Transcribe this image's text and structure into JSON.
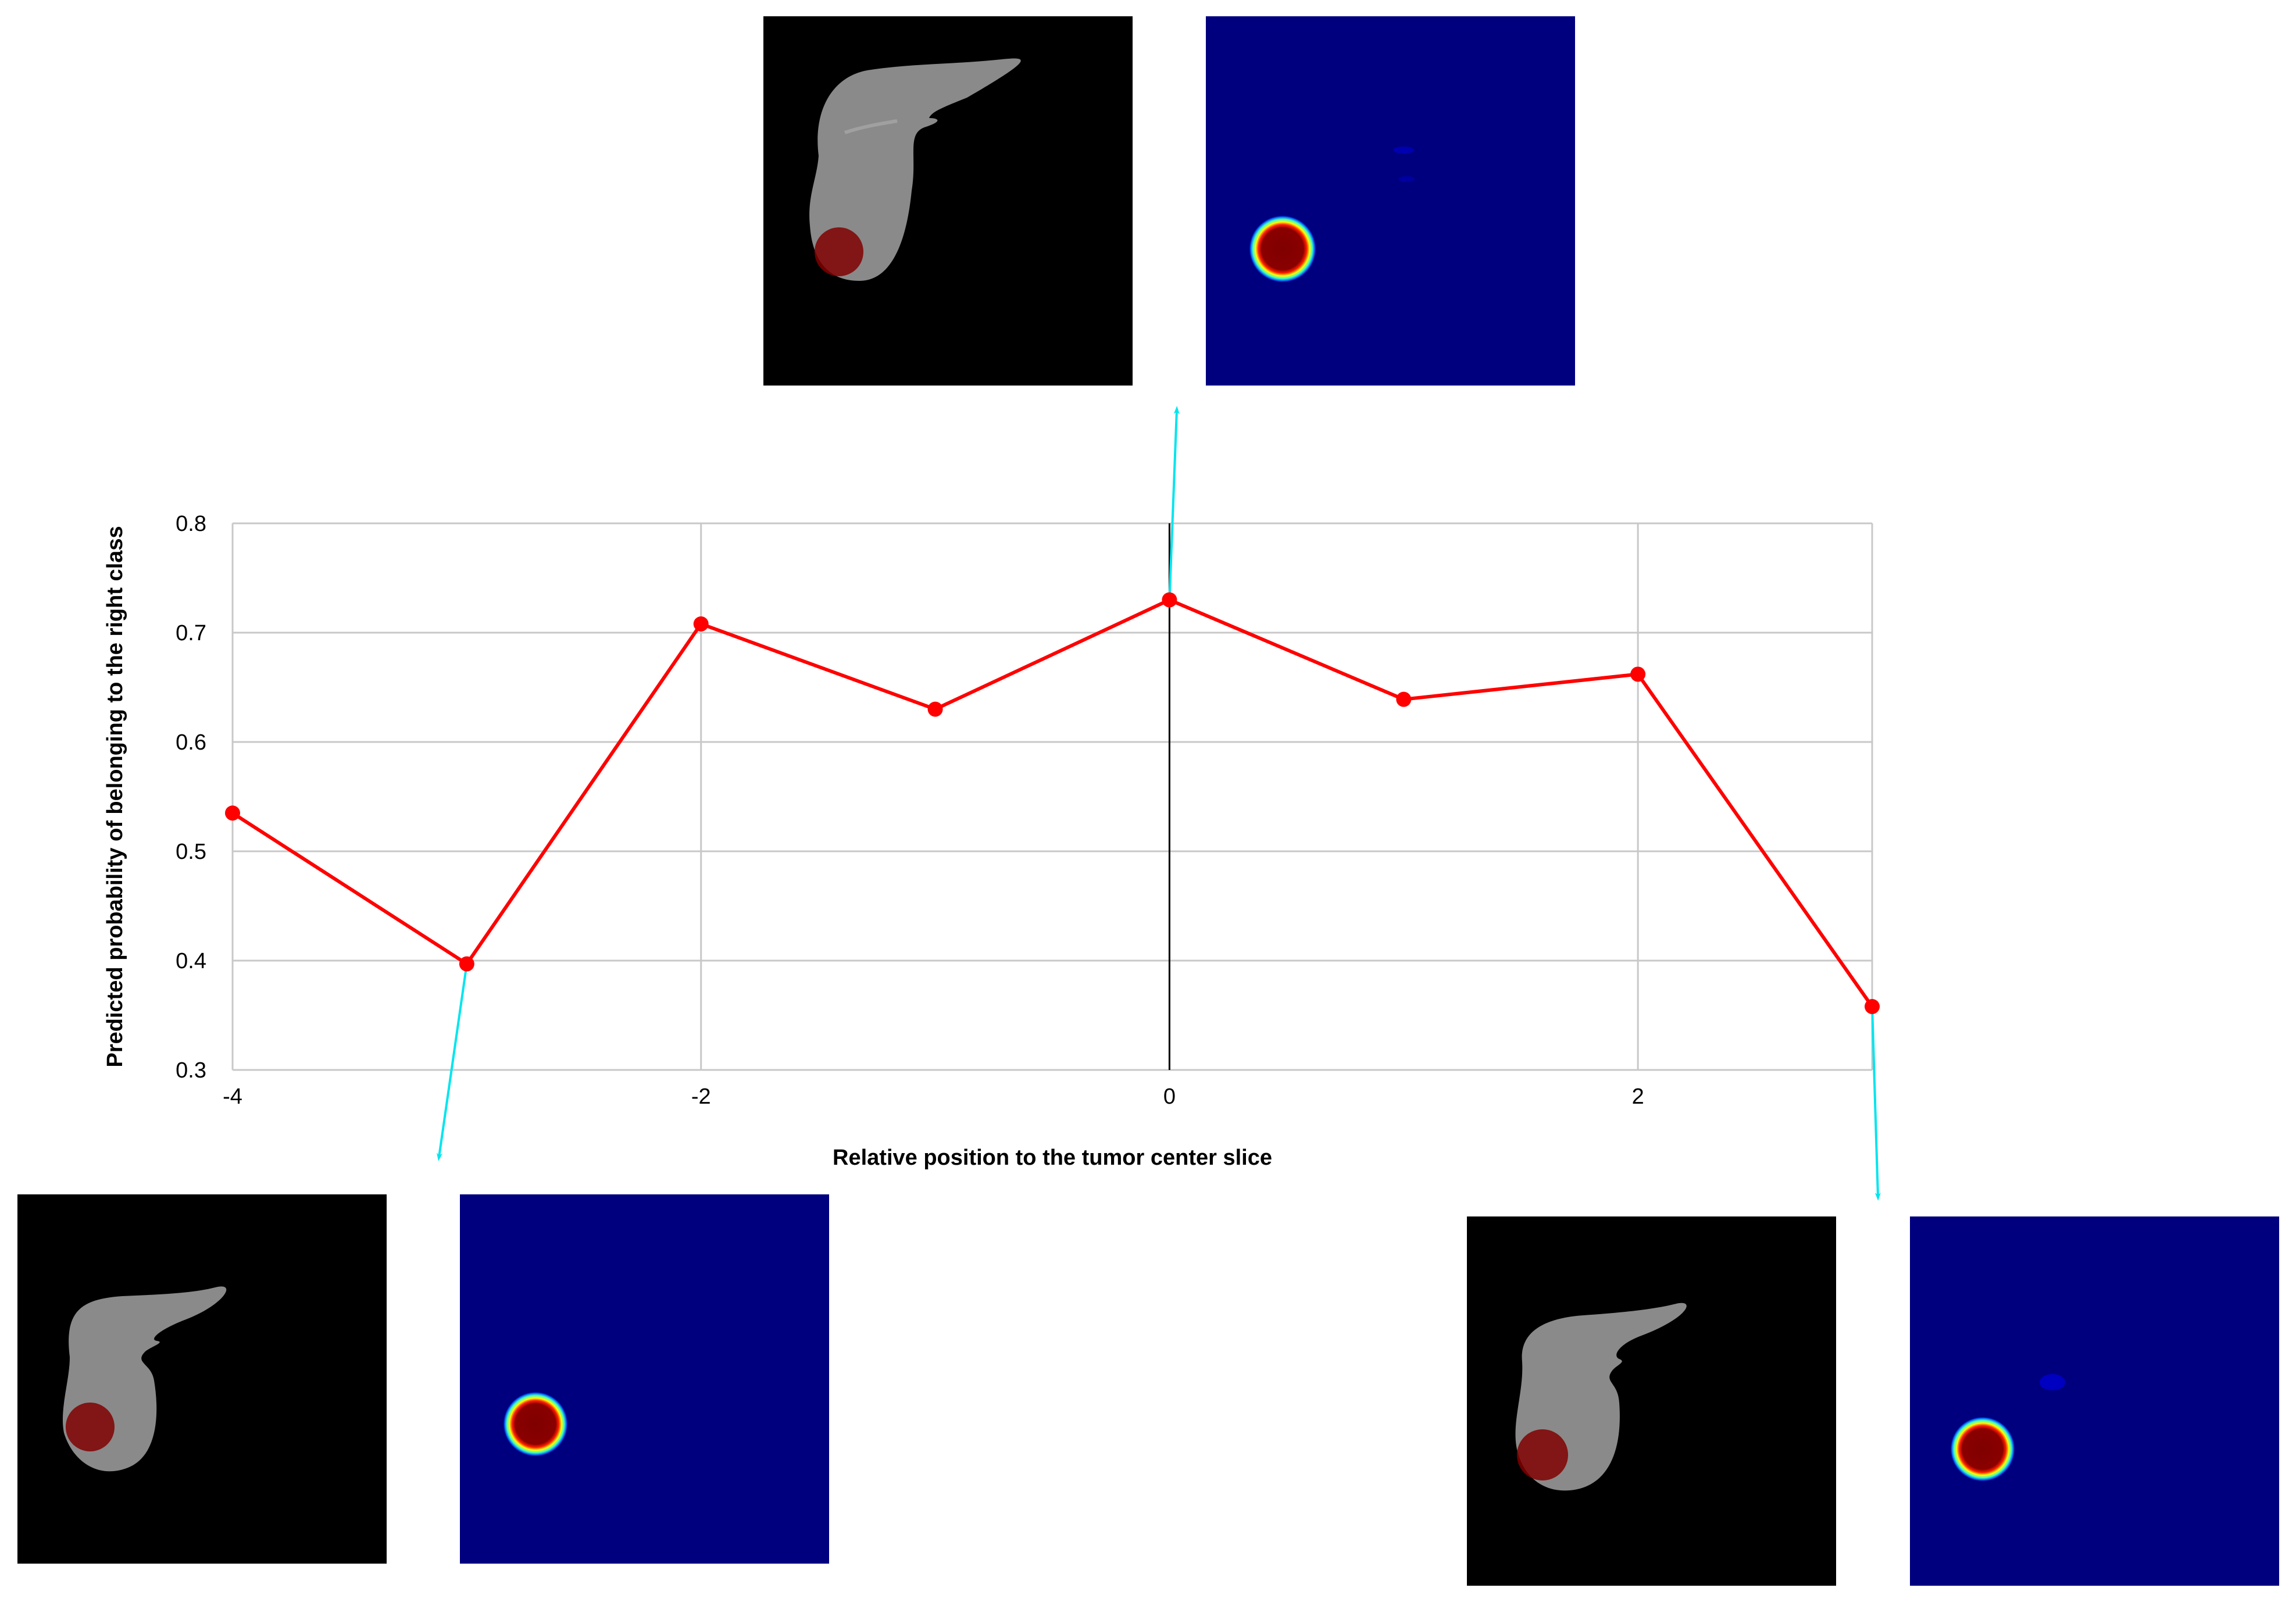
{
  "chart_data": {
    "type": "line",
    "title": "",
    "xlabel": "Relative position to the tumor center slice",
    "ylabel": "Predicted probability of belonging to the right class",
    "xlim": [
      -4,
      3
    ],
    "ylim": [
      0.3,
      0.8
    ],
    "x_ticks": [
      -4,
      -2,
      0,
      2
    ],
    "x_tick_labels": [
      "-4",
      "-2",
      "0",
      "2"
    ],
    "y_ticks": [
      0.3,
      0.4,
      0.5,
      0.6,
      0.7,
      0.8
    ],
    "y_tick_labels": [
      "0.3",
      "0.4",
      "0.5",
      "0.6",
      "0.7",
      "0.8"
    ],
    "grid": true,
    "highlight_x": 0,
    "series": [
      {
        "x": [
          -4,
          -3,
          -2,
          -1,
          0,
          1,
          2,
          3
        ],
        "y": [
          0.535,
          0.397,
          0.708,
          0.63,
          0.73,
          0.639,
          0.662,
          0.358
        ],
        "color": "#ff0000"
      }
    ],
    "annotations": [
      {
        "x": -3,
        "panels": "bottom-left"
      },
      {
        "x": 0,
        "panels": "top-center"
      },
      {
        "x": 3,
        "panels": "bottom-right"
      }
    ],
    "colors": {
      "line": "#ff0000",
      "marker": "#ff0000",
      "grid": "#c8c8c8",
      "arrow": "#00e5ee",
      "ct_background": "#000000",
      "heatmap_background": "#00007f",
      "tumor": "#800000"
    },
    "panels": [
      {
        "id": "top-ct",
        "kind": "ct-slice"
      },
      {
        "id": "top-heatmap",
        "kind": "probability-heatmap"
      },
      {
        "id": "bl-ct",
        "kind": "ct-slice"
      },
      {
        "id": "bl-heatmap",
        "kind": "probability-heatmap"
      },
      {
        "id": "br-ct",
        "kind": "ct-slice"
      },
      {
        "id": "br-heatmap",
        "kind": "probability-heatmap"
      }
    ]
  }
}
